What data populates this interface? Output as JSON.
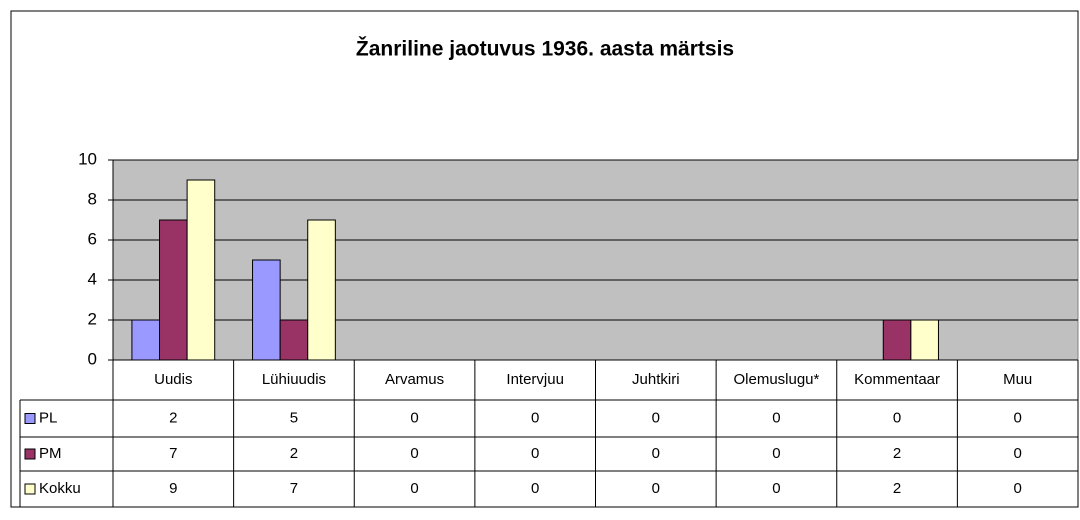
{
  "chart_data": {
    "type": "bar",
    "title": "Žanriline jaotuvus 1936. aasta märtsis",
    "categories": [
      "Uudis",
      "Lühiuudis",
      "Arvamus",
      "Intervjuu",
      "Juhtkiri",
      "Olemuslugu*",
      "Kommentaar",
      "Muu"
    ],
    "series": [
      {
        "name": "PL",
        "color": "#9999ff",
        "values": [
          2,
          5,
          0,
          0,
          0,
          0,
          0,
          0
        ]
      },
      {
        "name": "PM",
        "color": "#993366",
        "values": [
          7,
          2,
          0,
          0,
          0,
          0,
          2,
          0
        ]
      },
      {
        "name": "Kokku",
        "color": "#ffffcc",
        "values": [
          9,
          7,
          0,
          0,
          0,
          0,
          2,
          0
        ]
      }
    ],
    "ylim": [
      0,
      10
    ],
    "yticks": [
      0,
      2,
      4,
      6,
      8,
      10
    ],
    "grid": true,
    "plot_background": "#c0c0c0"
  }
}
